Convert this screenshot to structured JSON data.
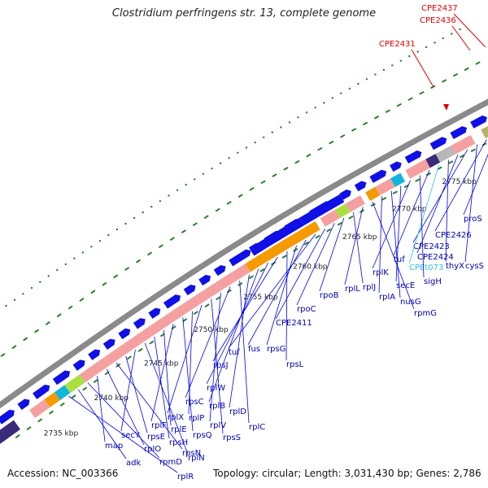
{
  "title": "Clostridium perfringens str. 13, complete genome",
  "footer": {
    "accession": "Accession: NC_003366",
    "summary": "Topology: circular; Length: 3,031,430 bp; Genes: 2,786"
  },
  "colors": {
    "backbone": "#8a8a8a",
    "gene_forward": "#0f0fe6",
    "rrna": "#f5a0a0",
    "orange_block": "#f59a00",
    "trna": "#12b4dc",
    "green_block": "#a8e040",
    "navy_block": "#3a2a7a",
    "olive_block": "#b8b070",
    "gray_block": "#b8b8b8",
    "label_line": "#0000ee",
    "label_text": "#0000aa",
    "trna_label": "#33bbee",
    "red_label": "#dd0000",
    "tick": "#2e7d2e"
  },
  "scale_labels": [
    "2735 kbp",
    "2740 kbp",
    "2745 kbp",
    "2750 kbp",
    "2755 kbp",
    "2760 kbp",
    "2765 kbp",
    "2770 kbp",
    "2775 kbp"
  ],
  "red_labels": [
    "CPE2431",
    "CPE2436",
    "CPE2437"
  ],
  "gene_labels": [
    {
      "name": "proS",
      "kind": "gene"
    },
    {
      "name": "CPE2426",
      "kind": "gene"
    },
    {
      "name": "cysS",
      "kind": "gene"
    },
    {
      "name": "CPE2423",
      "kind": "gene"
    },
    {
      "name": "CPE2424",
      "kind": "gene"
    },
    {
      "name": "thyX",
      "kind": "gene"
    },
    {
      "name": "CPEt073",
      "kind": "trna"
    },
    {
      "name": "tuf",
      "kind": "gene"
    },
    {
      "name": "sigH",
      "kind": "gene"
    },
    {
      "name": "rplK",
      "kind": "gene"
    },
    {
      "name": "secE",
      "kind": "gene"
    },
    {
      "name": "nusG",
      "kind": "gene"
    },
    {
      "name": "rplA",
      "kind": "gene"
    },
    {
      "name": "rpmG",
      "kind": "gene"
    },
    {
      "name": "rplL",
      "kind": "gene"
    },
    {
      "name": "rplJ",
      "kind": "gene"
    },
    {
      "name": "rpoB",
      "kind": "gene"
    },
    {
      "name": "rpoC",
      "kind": "gene"
    },
    {
      "name": "CPE2411",
      "kind": "gene"
    },
    {
      "name": "tuf",
      "kind": "gene"
    },
    {
      "name": "fus",
      "kind": "gene"
    },
    {
      "name": "rpsG",
      "kind": "gene"
    },
    {
      "name": "rpsL",
      "kind": "gene"
    },
    {
      "name": "rpsJ",
      "kind": "gene"
    },
    {
      "name": "rplW",
      "kind": "gene"
    },
    {
      "name": "rplB",
      "kind": "gene"
    },
    {
      "name": "rplD",
      "kind": "gene"
    },
    {
      "name": "rplC",
      "kind": "gene"
    },
    {
      "name": "rpsC",
      "kind": "gene"
    },
    {
      "name": "rplV",
      "kind": "gene"
    },
    {
      "name": "rpsS",
      "kind": "gene"
    },
    {
      "name": "rplX",
      "kind": "gene"
    },
    {
      "name": "rplP",
      "kind": "gene"
    },
    {
      "name": "rpsQ",
      "kind": "gene"
    },
    {
      "name": "rplF",
      "kind": "gene"
    },
    {
      "name": "rplE",
      "kind": "gene"
    },
    {
      "name": "rpsH",
      "kind": "gene"
    },
    {
      "name": "rplN",
      "kind": "gene"
    },
    {
      "name": "secY",
      "kind": "gene"
    },
    {
      "name": "rpsE",
      "kind": "gene"
    },
    {
      "name": "rpsN",
      "kind": "gene"
    },
    {
      "name": "rplO",
      "kind": "gene"
    },
    {
      "name": "map",
      "kind": "gene"
    },
    {
      "name": "rpmD",
      "kind": "gene"
    },
    {
      "name": "adk",
      "kind": "gene"
    },
    {
      "name": "rplR",
      "kind": "gene"
    }
  ]
}
